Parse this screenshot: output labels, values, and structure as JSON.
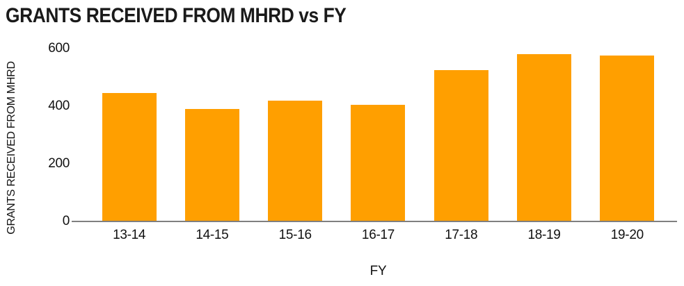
{
  "title": "GRANTS RECEIVED FROM MHRD vs FY",
  "colors": {
    "bar": "#FF9F00",
    "axis_line": "#7F7F7F",
    "text": "#111111"
  },
  "chart_data": {
    "type": "bar",
    "title": "GRANTS RECEIVED FROM MHRD vs FY",
    "categories": [
      "13-14",
      "14-15",
      "15-16",
      "16-17",
      "17-18",
      "18-19",
      "19-20"
    ],
    "values": [
      445,
      390,
      420,
      405,
      525,
      580,
      575
    ],
    "xlabel": "FY",
    "ylabel": "GRANTS RECEIVED FROM MHRD",
    "ylim": [
      0,
      600
    ],
    "yticks": [
      0,
      200,
      400,
      600
    ],
    "grid": false,
    "legend": false,
    "bar_color": "#FF9F00"
  }
}
